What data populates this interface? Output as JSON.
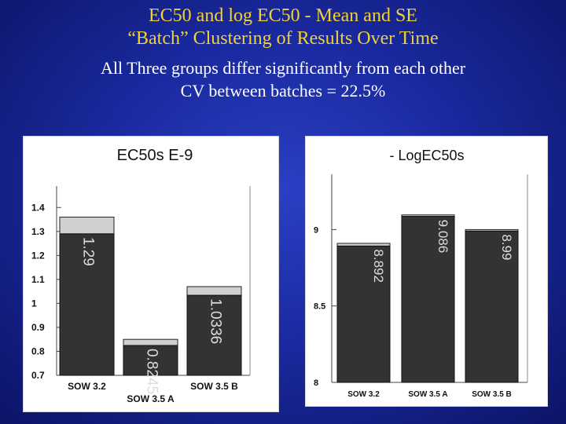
{
  "slide": {
    "title_line1": "EC50 and log EC50 - Mean and SE",
    "title_line2": "“Batch” Clustering of Results Over Time",
    "subtitle_line1": "All Three groups differ significantly from each other",
    "subtitle_line2": "CV between batches = 22.5%",
    "colors": {
      "background": "#1a2aa0",
      "title": "#f2d233",
      "text": "#ffffff"
    }
  },
  "chart_data": [
    {
      "type": "bar",
      "title": "EC50s E-9",
      "xlabel": "",
      "ylabel": "",
      "categories": [
        "SOW 3.2",
        "SOW 3.5 A",
        "SOW 3.5 B"
      ],
      "values": [
        1.29,
        0.8245,
        1.0336
      ],
      "value_labels": [
        "1.29",
        "0.8245",
        "1.0336"
      ],
      "se_upper": [
        1.36,
        0.85,
        1.07
      ],
      "ylim": [
        0.7,
        1.45
      ],
      "yticks": [
        0.7,
        0.8,
        0.9,
        1,
        1.1,
        1.2,
        1.3,
        1.4
      ],
      "ytick_labels": [
        "0.7",
        "0.8",
        "0.9",
        "1",
        "1.1",
        "1.2",
        "1.3",
        "1.4"
      ],
      "grid": false,
      "colors": {
        "bar": "#333333",
        "se": "#d0d0d0"
      }
    },
    {
      "type": "bar",
      "title": "- LogEC50s",
      "xlabel": "",
      "ylabel": "",
      "categories": [
        "SOW 3.2",
        "SOW 3.5 A",
        "SOW 3.5 B"
      ],
      "values": [
        8.892,
        9.086,
        8.99
      ],
      "value_labels": [
        "8.892",
        "9.086",
        "8.99"
      ],
      "se_upper": [
        8.91,
        9.096,
        9.0
      ],
      "ylim": [
        8,
        9.3
      ],
      "yticks": [
        8,
        8.5,
        9
      ],
      "ytick_labels": [
        "8",
        "8.5",
        "9"
      ],
      "grid": false,
      "colors": {
        "bar": "#333333",
        "se": "#d0d0d0"
      }
    }
  ]
}
